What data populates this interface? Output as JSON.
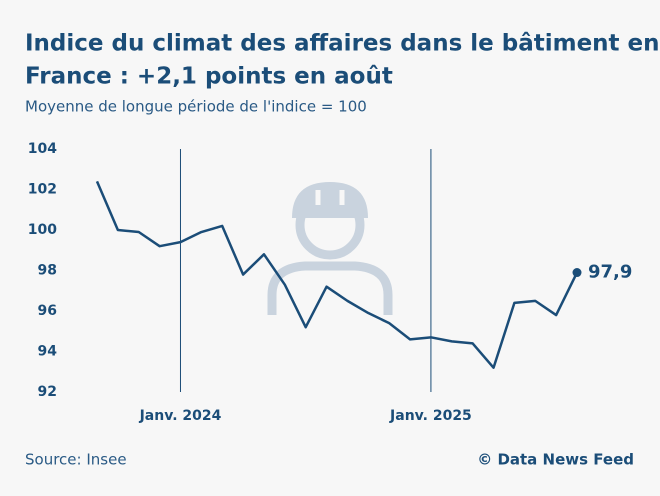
{
  "chart_data": {
    "type": "line",
    "title": [
      "Indice du climat des affaires dans le bâtiment en",
      "France : +2,1 points en août"
    ],
    "subtitle": "Moyenne de longue période de l'indice = 100",
    "categories": [
      null,
      null,
      null,
      null,
      "Janv. 2024",
      null,
      null,
      null,
      null,
      null,
      null,
      null,
      null,
      null,
      null,
      null,
      "Janv. 2025",
      null,
      null,
      null,
      null,
      null,
      null,
      null
    ],
    "series": [
      {
        "color": "#1b4d78",
        "values": [
          102.4,
          100.0,
          99.9,
          99.2,
          99.4,
          99.9,
          100.2,
          97.8,
          98.8,
          97.3,
          95.2,
          97.2,
          96.5,
          95.9,
          95.4,
          94.6,
          94.7,
          94.5,
          94.4,
          93.2,
          96.4,
          96.5,
          95.8,
          97.9
        ],
        "value_labels": [
          null,
          null,
          null,
          null,
          null,
          null,
          null,
          null,
          null,
          null,
          null,
          null,
          null,
          null,
          null,
          null,
          null,
          null,
          null,
          null,
          null,
          null,
          null,
          "97,9"
        ]
      }
    ],
    "ylim": [
      92,
      104
    ],
    "yticks": [
      92,
      94,
      96,
      98,
      100,
      102,
      104
    ],
    "source": "Source: Insee",
    "credit": "© Data News Feed"
  }
}
